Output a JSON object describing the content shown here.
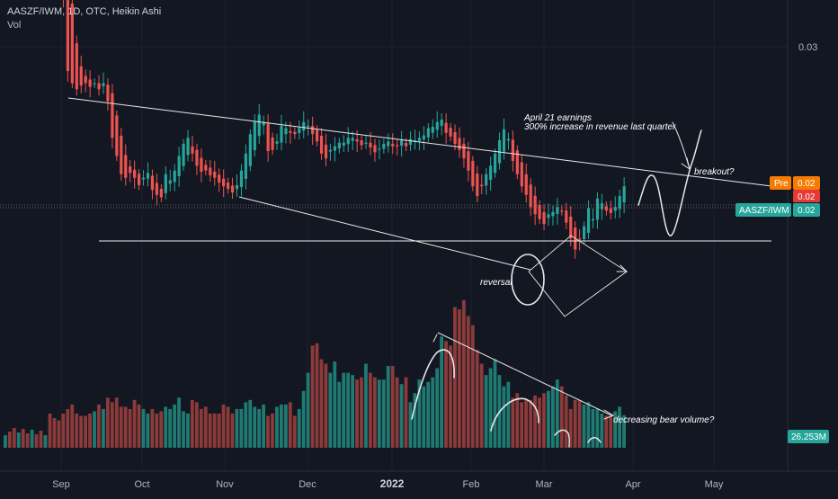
{
  "header": {
    "title": "AASZF/IWM, 1D, OTC, Heikin Ashi",
    "volume_label": "Vol"
  },
  "price_axis": {
    "tick_label": "0.03",
    "pre_tag": {
      "label": "Pre",
      "value": "0.02",
      "color": "#f57c00"
    },
    "last_tag_value": "0.02",
    "last_tag_color": "#e53935",
    "symbol_tag": {
      "label": "AASZF/IWM",
      "value": "0.02",
      "color": "#26a69a"
    },
    "volume_tag": {
      "value": "26.253M",
      "color": "#26a69a"
    }
  },
  "annotations": {
    "earnings_line1": "April 21 earnings",
    "earnings_line2": "300% increase in revenue last quarter",
    "breakout": "breakout?",
    "reversal": "reversal",
    "bear_volume": "decreasing bear volume?"
  },
  "chart_data": {
    "type": "candlestick",
    "title": "AASZF/IWM, 1D, OTC, Heikin Ashi",
    "x_ticks": [
      "Sep",
      "Oct",
      "Nov",
      "Dec",
      "2022",
      "Feb",
      "Mar",
      "Apr",
      "May"
    ],
    "y_ticks": [
      0.03
    ],
    "colors": {
      "up": "#26a69a",
      "down": "#ef5350",
      "up_volume": "#1f7a72",
      "down_volume": "#8c3a3a"
    },
    "price_series": [
      0.0495,
      0.047,
      0.04,
      0.034,
      0.028,
      0.027,
      0.0265,
      0.0268,
      0.027,
      0.0267,
      0.027,
      0.0265,
      0.027,
      0.0255,
      0.0225,
      0.021,
      0.0195,
      0.0192,
      0.0196,
      0.0192,
      0.0186,
      0.0192,
      0.0196,
      0.0182,
      0.0178,
      0.0176,
      0.0195,
      0.019,
      0.0198,
      0.021,
      0.022,
      0.0225,
      0.0212,
      0.0202,
      0.0197,
      0.0198,
      0.0194,
      0.0192,
      0.0188,
      0.0185,
      0.0183,
      0.018,
      0.0186,
      0.0198,
      0.0212,
      0.0228,
      0.0238,
      0.0244,
      0.0238,
      0.0214,
      0.0215,
      0.0222,
      0.0235,
      0.0233,
      0.0229,
      0.0228,
      0.0233,
      0.0238,
      0.0235,
      0.0228,
      0.0222,
      0.0212,
      0.0208,
      0.0215,
      0.0218,
      0.0221,
      0.0221,
      0.0225,
      0.0225,
      0.0222,
      0.0219,
      0.0221,
      0.0217,
      0.0213,
      0.0216,
      0.022,
      0.0222,
      0.0218,
      0.0218,
      0.0223,
      0.0218,
      0.0224,
      0.0223,
      0.0225,
      0.0227,
      0.0233,
      0.0234,
      0.0238,
      0.024,
      0.0229,
      0.0226,
      0.022,
      0.0215,
      0.0208,
      0.0198,
      0.0185,
      0.0177,
      0.0185,
      0.0195,
      0.0202,
      0.0212,
      0.0223,
      0.0232,
      0.0224,
      0.0206,
      0.0195,
      0.0185,
      0.0178,
      0.0168,
      0.0162,
      0.0158,
      0.0154,
      0.0162,
      0.0164,
      0.0168,
      0.0165,
      0.0155,
      0.0142,
      0.0133,
      0.0141,
      0.0152,
      0.0167,
      0.0158,
      0.0175,
      0.0171,
      0.0165,
      0.0163,
      0.0168,
      0.0177,
      0.0185
    ],
    "volume_series_M": [
      27,
      25,
      24,
      27,
      29,
      31,
      27,
      26,
      26,
      27,
      28,
      31,
      29,
      34,
      32,
      34,
      30,
      30,
      29,
      33,
      31,
      29,
      27,
      29,
      27,
      28,
      30,
      29,
      31,
      34,
      28,
      27,
      33,
      32,
      29,
      30,
      27,
      27,
      27,
      31,
      30,
      27,
      29,
      29,
      32,
      33,
      30,
      29,
      31,
      26,
      27,
      30,
      31,
      31,
      32,
      26,
      29,
      37,
      45,
      57,
      58,
      51,
      49,
      45,
      50,
      41,
      45,
      45,
      44,
      42,
      43,
      49,
      45,
      43,
      42,
      42,
      48,
      48,
      43,
      40,
      43,
      32,
      36,
      42,
      39,
      41,
      43,
      47,
      61,
      59,
      57,
      74,
      73,
      77,
      70,
      66,
      55,
      49,
      44,
      47,
      51,
      44,
      39,
      41,
      34,
      36,
      32,
      33,
      33,
      35,
      34,
      36,
      37,
      39,
      42,
      39,
      35,
      29,
      33,
      33,
      31,
      32,
      29,
      29,
      27,
      26,
      26,
      28,
      30,
      26.253
    ]
  }
}
